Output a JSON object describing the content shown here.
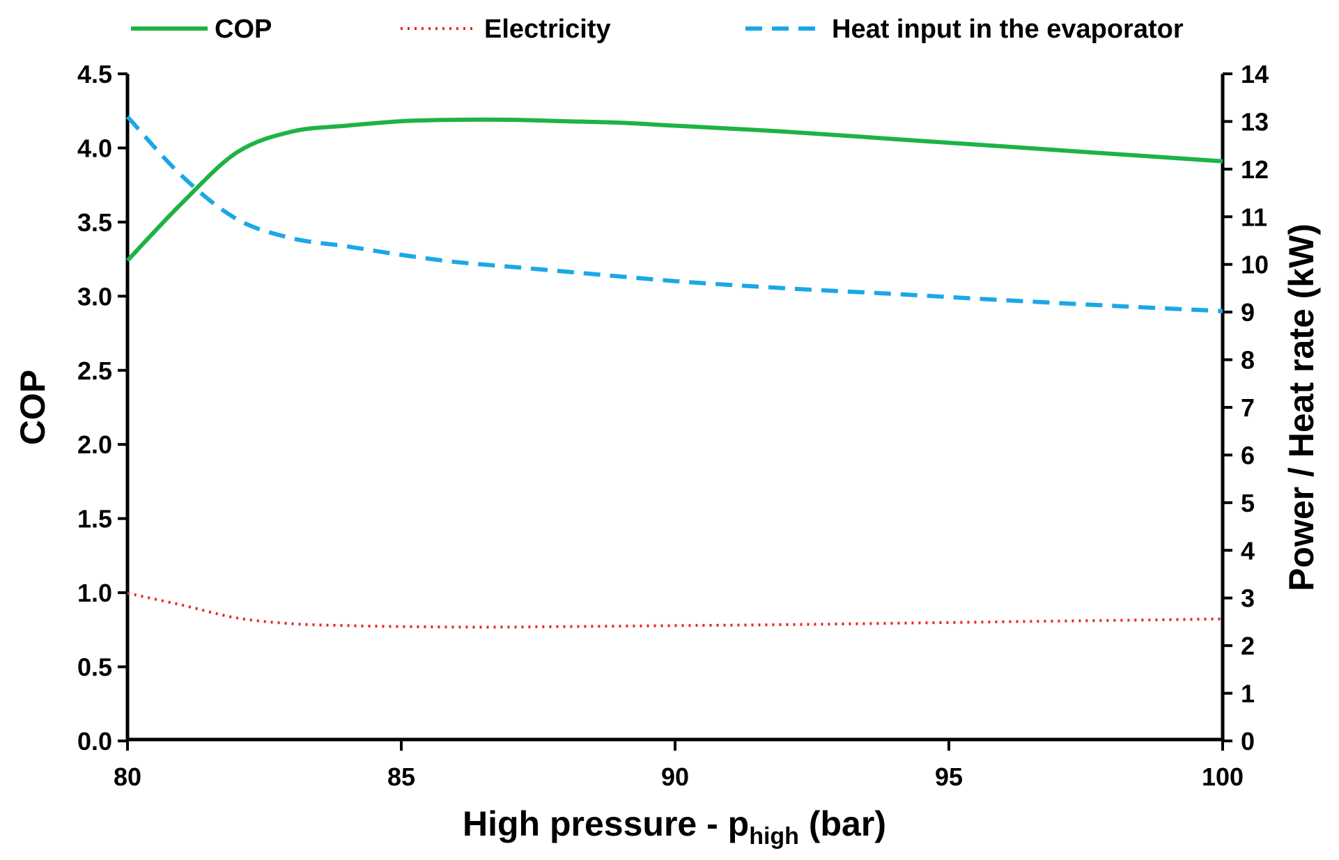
{
  "chart_data": {
    "type": "line",
    "title": "",
    "xlabel": {
      "main": "High pressure - p",
      "subscript": "high",
      "suffix": " (bar)"
    },
    "ylabel_left": "COP",
    "ylabel_right": "Power / Heat rate (kW)",
    "xlim": [
      80,
      100
    ],
    "ylim_left": [
      0,
      4.5
    ],
    "ylim_right": [
      0,
      14
    ],
    "x_ticks": [
      80,
      85,
      90,
      95,
      100
    ],
    "x_tick_labels": [
      "80",
      "85",
      "90",
      "95",
      "100"
    ],
    "y_left_ticks": [
      0,
      0.5,
      1.0,
      1.5,
      2.0,
      2.5,
      3.0,
      3.5,
      4.0,
      4.5
    ],
    "y_left_tick_labels": [
      "0.0",
      "0.5",
      "1.0",
      "1.5",
      "2.0",
      "2.5",
      "3.0",
      "3.5",
      "4.0",
      "4.5"
    ],
    "y_right_ticks": [
      0,
      1,
      2,
      3,
      4,
      5,
      6,
      7,
      8,
      9,
      10,
      11,
      12,
      13,
      14
    ],
    "y_right_tick_labels": [
      "0",
      "1",
      "2",
      "3",
      "4",
      "5",
      "6",
      "7",
      "8",
      "9",
      "10",
      "11",
      "12",
      "13",
      "14"
    ],
    "grid": false,
    "legend_position": "top",
    "series": [
      {
        "name": "COP",
        "axis": "left",
        "style": "solid",
        "color": "#1db346",
        "x": [
          80,
          81,
          82,
          83,
          84,
          85,
          86,
          87,
          88,
          89,
          90,
          92,
          94,
          96,
          98,
          100
        ],
        "values": [
          3.24,
          3.63,
          3.97,
          4.11,
          4.15,
          4.18,
          4.19,
          4.19,
          4.18,
          4.17,
          4.15,
          4.11,
          4.06,
          4.01,
          3.96,
          3.91
        ]
      },
      {
        "name": "Electricity",
        "axis": "right",
        "style": "dotted",
        "color": "#ee2222",
        "x": [
          80,
          81,
          82,
          83,
          84,
          85,
          86,
          87,
          88,
          90,
          92,
          94,
          96,
          98,
          100
        ],
        "values": [
          3.1,
          2.85,
          2.58,
          2.46,
          2.42,
          2.4,
          2.39,
          2.39,
          2.4,
          2.42,
          2.44,
          2.47,
          2.5,
          2.53,
          2.56
        ]
      },
      {
        "name": "Heat input in the evaporator",
        "axis": "right",
        "style": "dashed",
        "color": "#1aa8e6",
        "x": [
          80,
          81,
          82,
          83,
          84,
          85,
          86,
          87,
          88,
          90,
          92,
          94,
          96,
          98,
          100
        ],
        "values": [
          13.1,
          11.85,
          10.95,
          10.55,
          10.38,
          10.2,
          10.05,
          9.95,
          9.85,
          9.65,
          9.5,
          9.38,
          9.25,
          9.13,
          9.02
        ]
      }
    ]
  }
}
